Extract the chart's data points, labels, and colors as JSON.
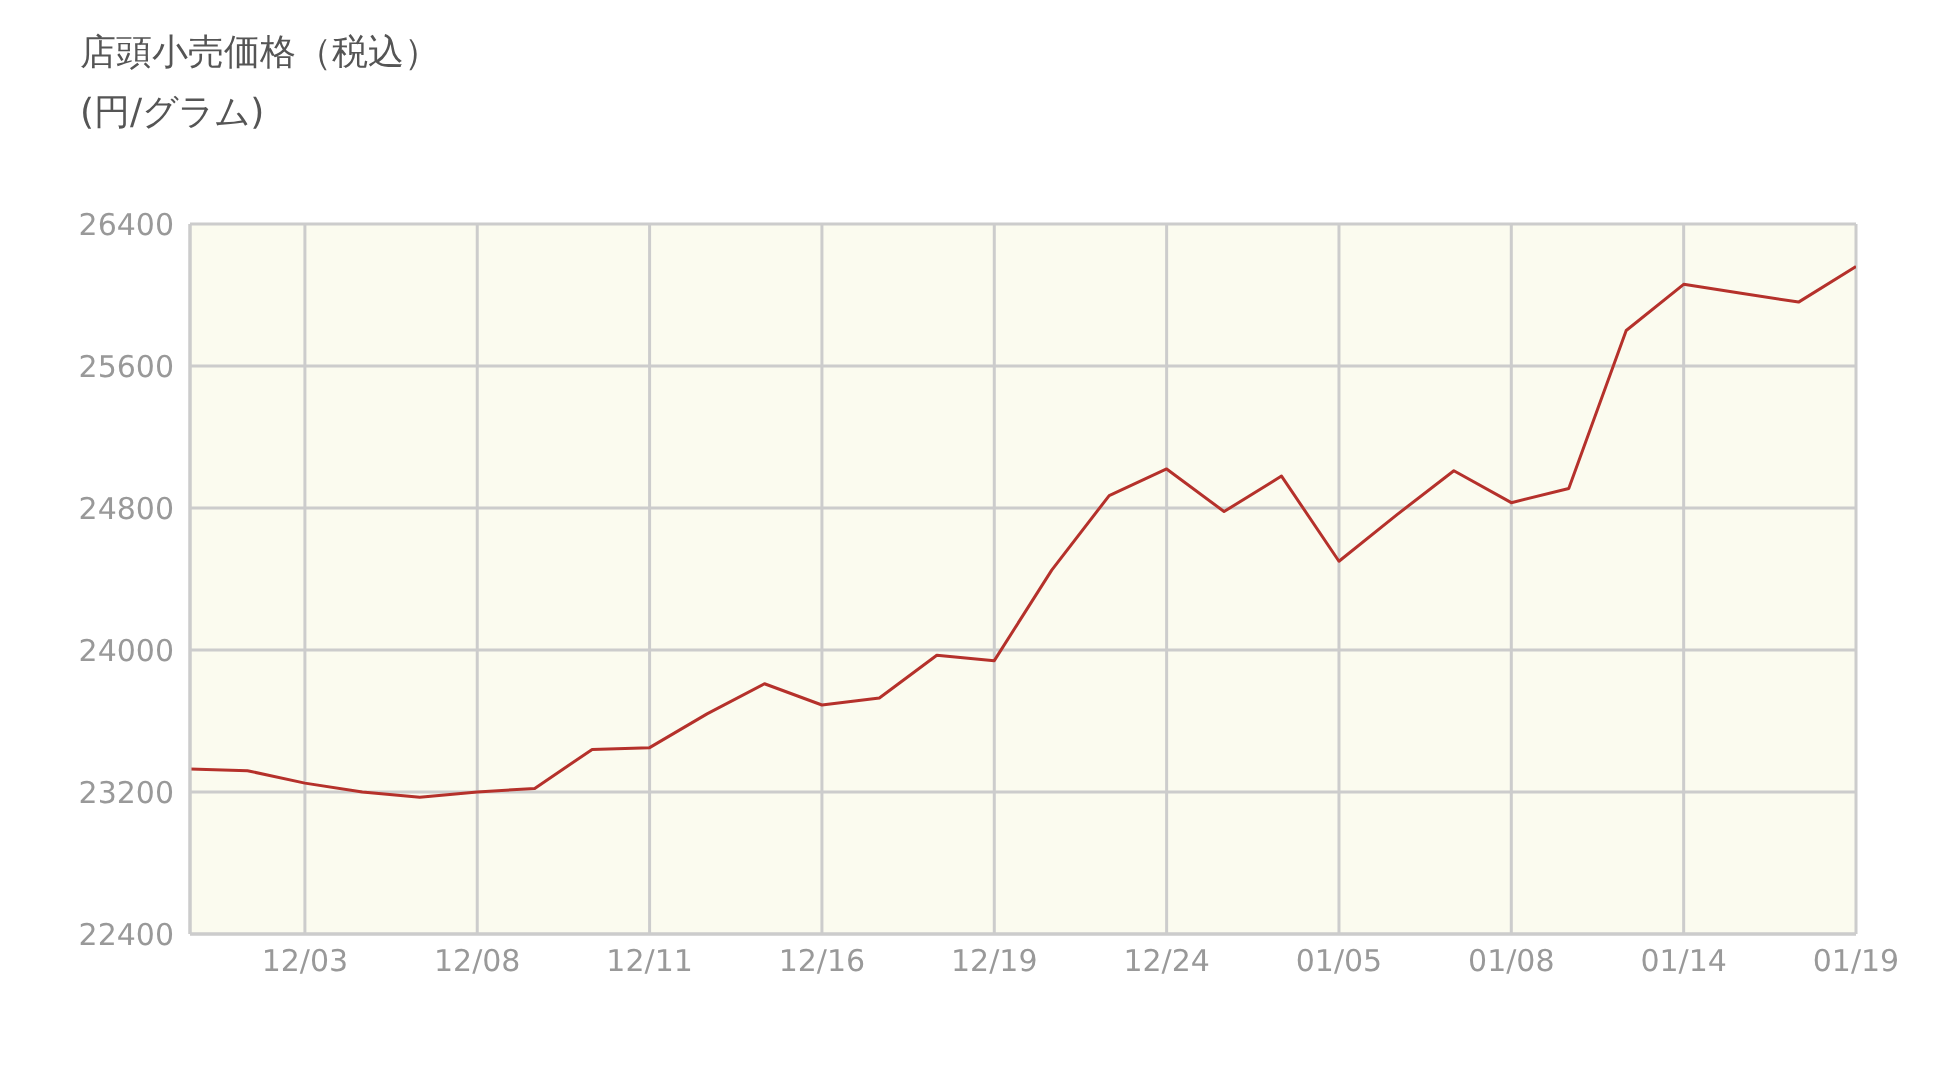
{
  "chart_data": {
    "type": "line",
    "title": "店頭小売価格（税込）",
    "subtitle": "(円/グラム)",
    "categories": [
      null,
      null,
      "12/03",
      null,
      null,
      "12/08",
      null,
      null,
      "12/11",
      null,
      null,
      "12/16",
      null,
      null,
      "12/19",
      null,
      null,
      "12/24",
      null,
      null,
      "01/05",
      null,
      null,
      "01/08",
      null,
      null,
      "01/14",
      null,
      null,
      "01/19"
    ],
    "series": [
      {
        "color": "#b5312b",
        "values": [
          23330,
          23320,
          23250,
          23200,
          23170,
          23200,
          23220,
          23440,
          23450,
          23640,
          23810,
          23690,
          23730,
          23970,
          23940,
          24450,
          24870,
          25020,
          24780,
          24980,
          24500,
          24760,
          25010,
          24830,
          24910,
          25800,
          26060,
          26010,
          25960,
          26160
        ]
      }
    ],
    "ylim": [
      22400,
      26400
    ],
    "yticks": [
      22400,
      23200,
      24000,
      24800,
      25600,
      26400
    ],
    "grid": true,
    "legend": false,
    "marker": "none",
    "line_style": "solid"
  }
}
